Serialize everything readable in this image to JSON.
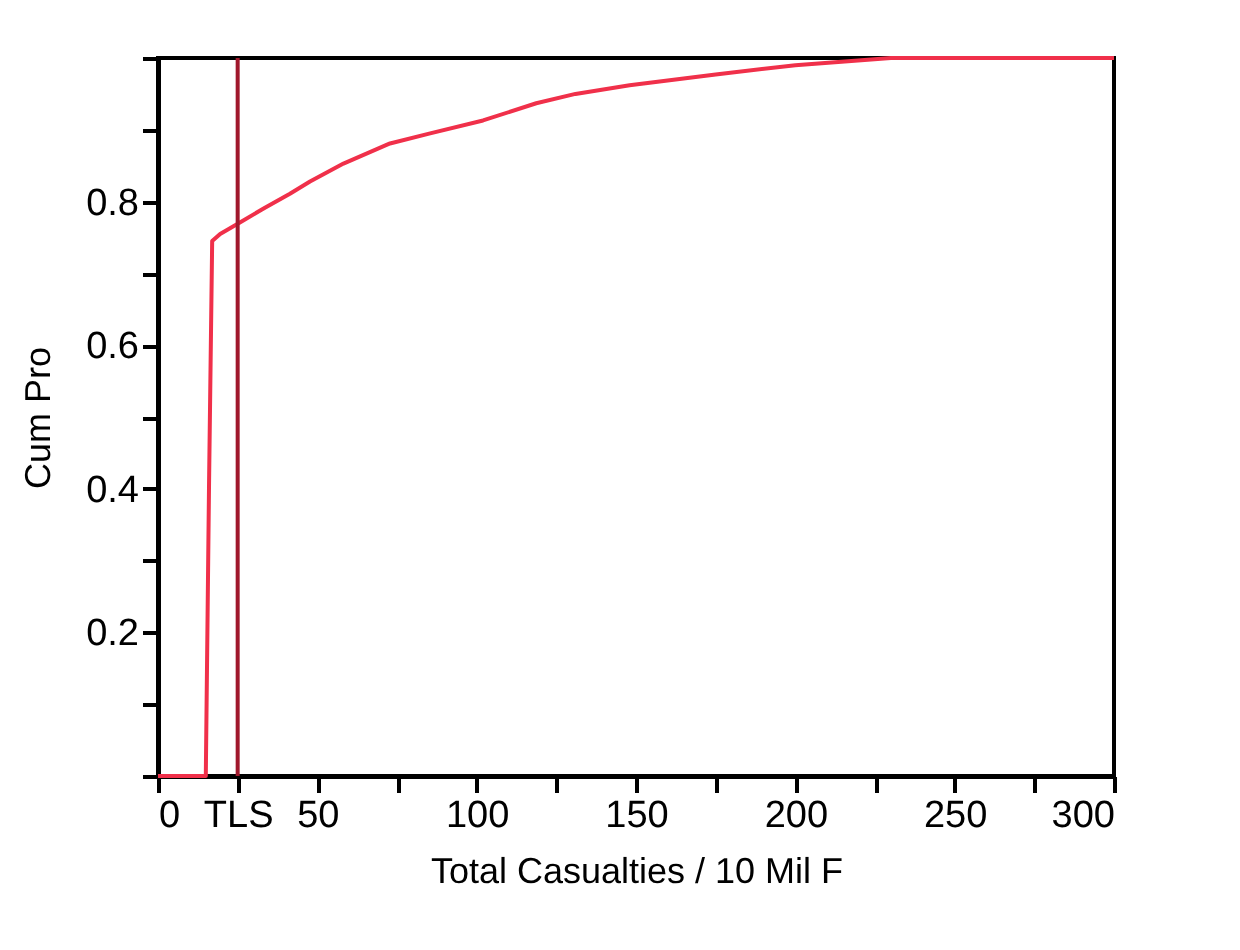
{
  "chart_data": {
    "type": "line",
    "xlabel": "Total Casualties / 10 Mil F",
    "ylabel": "Cum Pro",
    "x": [
      0,
      15,
      16,
      17,
      19.5,
      25.7,
      33,
      41.4,
      47.7,
      58.2,
      72.8,
      85.4,
      102,
      118.7,
      131,
      148,
      175,
      200,
      230,
      300
    ],
    "series": [
      {
        "color": "#f0304a",
        "values": [
          0,
          0,
          0.4,
          0.745,
          0.755,
          0.771,
          0.79,
          0.811,
          0.828,
          0.853,
          0.881,
          0.895,
          0.913,
          0.937,
          0.95,
          0.962,
          0.977,
          0.99,
          1.0,
          1.0
        ]
      }
    ],
    "xlim": [
      0,
      300
    ],
    "ylim": [
      0,
      1
    ],
    "xticks": [
      0,
      {
        "value": 25,
        "label": "TLS"
      },
      50,
      {
        "value": 75,
        "label": null
      },
      100,
      {
        "value": 125,
        "label": null
      },
      150,
      {
        "value": 175,
        "label": null
      },
      200,
      {
        "value": 225,
        "label": null
      },
      250,
      {
        "value": 275,
        "label": null
      },
      300
    ],
    "yticks": [
      {
        "value": 0,
        "label": null
      },
      {
        "value": 0.1,
        "label": null
      },
      0.2,
      {
        "value": 0.3,
        "label": null
      },
      0.4,
      {
        "value": 0.5,
        "label": null
      },
      0.6,
      {
        "value": 0.7,
        "label": null
      },
      0.8,
      {
        "value": 0.9,
        "label": null
      },
      {
        "value": 1,
        "label": null
      }
    ],
    "ref_lines": [
      {
        "axis": "x",
        "value": 25,
        "color": "#a0182c"
      }
    ],
    "grid": false,
    "legend": false,
    "marker": "none",
    "line_style": "solid"
  }
}
